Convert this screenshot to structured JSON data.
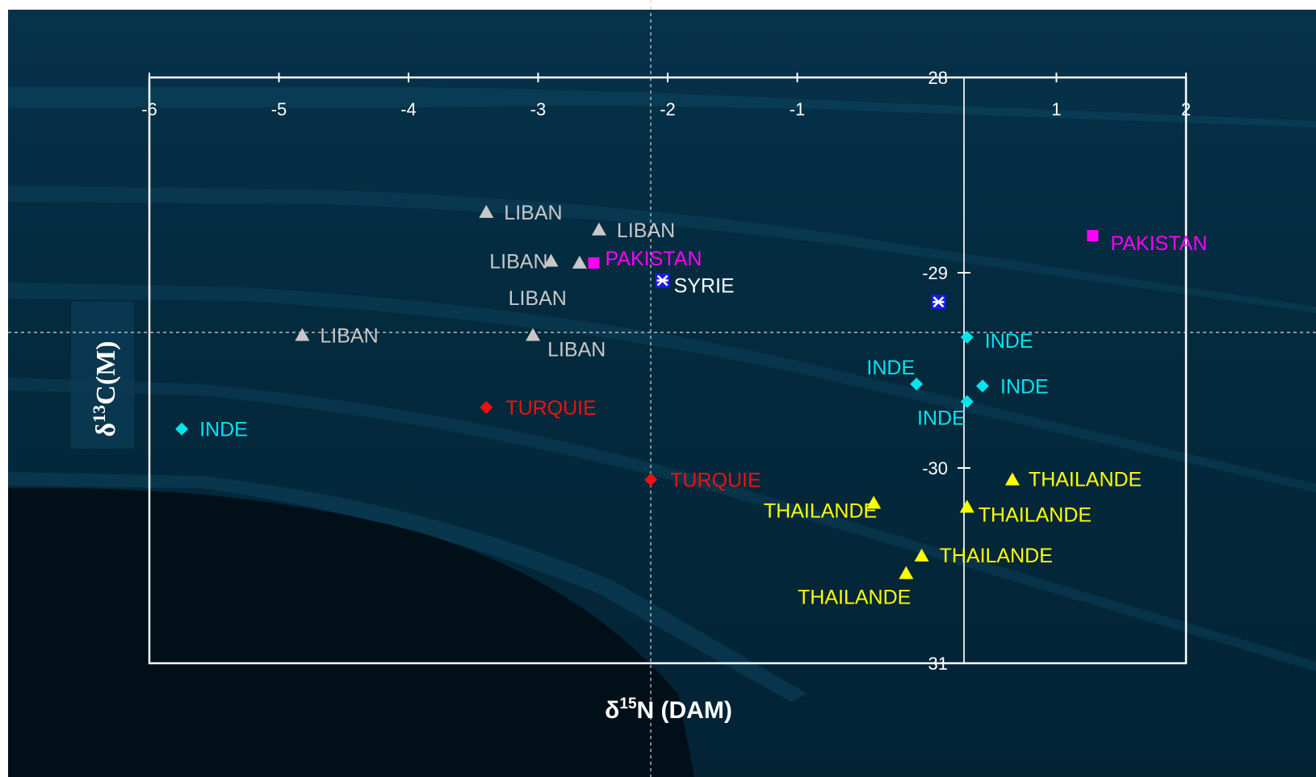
{
  "chart_data": {
    "type": "scatter",
    "title": "",
    "xlabel": {
      "prefix": "δ",
      "sup": "15",
      "main": "N (DAM)"
    },
    "ylabel": {
      "prefix": "δ",
      "sup": "13",
      "main": "C(M)"
    },
    "xlim": [
      -6,
      2
    ],
    "ylim": [
      31,
      28
    ],
    "x_ticks": [
      -6,
      -5,
      -4,
      -3,
      -2,
      -1,
      1,
      2
    ],
    "y_ticks": [
      28,
      -29,
      -30,
      31
    ],
    "grid": false,
    "colors": {
      "LIBAN": "#c8c8c8",
      "PAKISTAN": "#ff00ff",
      "SYRIE": "#ffffff",
      "INDE": "#00e5ee",
      "TURQUIE": "#ee1111",
      "THAILANDE": "#ffff00"
    },
    "points": [
      {
        "x": -3.4,
        "y": -28.69,
        "group": "LIBAN",
        "marker": "triangle",
        "label": "LIBAN"
      },
      {
        "x": -2.53,
        "y": -28.78,
        "group": "LIBAN",
        "marker": "triangle",
        "label": "LIBAN"
      },
      {
        "x": -2.9,
        "y": -28.94,
        "group": "LIBAN",
        "marker": "triangle",
        "label": "LIBAN"
      },
      {
        "x": -2.68,
        "y": -28.95,
        "group": "LIBAN",
        "marker": "triangle",
        "label": "LIBAN"
      },
      {
        "x": -4.82,
        "y": -29.32,
        "group": "LIBAN",
        "marker": "triangle",
        "label": "LIBAN"
      },
      {
        "x": -3.04,
        "y": -29.32,
        "group": "LIBAN",
        "marker": "triangle",
        "label": "LIBAN"
      },
      {
        "x": -2.57,
        "y": -28.95,
        "group": "PAKISTAN",
        "marker": "square",
        "label": "PAKISTAN"
      },
      {
        "x": 1.28,
        "y": -28.81,
        "group": "PAKISTAN",
        "marker": "square",
        "label": "PAKISTAN"
      },
      {
        "x": -2.04,
        "y": -29.04,
        "group": "SYRIE",
        "marker": "star",
        "label": "SYRIE"
      },
      {
        "x": 0.09,
        "y": -29.15,
        "group": "SYRIE",
        "marker": "star",
        "label": ""
      },
      {
        "x": -5.75,
        "y": -29.8,
        "group": "INDE",
        "marker": "diamond",
        "label": "INDE"
      },
      {
        "x": 0.31,
        "y": -29.33,
        "group": "INDE",
        "marker": "diamond",
        "label": "INDE"
      },
      {
        "x": -0.08,
        "y": -29.57,
        "group": "INDE",
        "marker": "diamond",
        "label": "INDE"
      },
      {
        "x": 0.43,
        "y": -29.58,
        "group": "INDE",
        "marker": "diamond",
        "label": "INDE"
      },
      {
        "x": 0.31,
        "y": -29.66,
        "group": "INDE",
        "marker": "diamond",
        "label": "INDE"
      },
      {
        "x": -3.4,
        "y": -29.69,
        "group": "TURQUIE",
        "marker": "diamond",
        "label": "TURQUIE"
      },
      {
        "x": -2.13,
        "y": -30.06,
        "group": "TURQUIE",
        "marker": "diamond",
        "label": "TURQUIE"
      },
      {
        "x": 0.66,
        "y": -30.06,
        "group": "THAILANDE",
        "marker": "triangle",
        "label": "THAILANDE"
      },
      {
        "x": -0.41,
        "y": -30.18,
        "group": "THAILANDE",
        "marker": "triangle",
        "label": "THAILANDE"
      },
      {
        "x": 0.31,
        "y": -30.2,
        "group": "THAILANDE",
        "marker": "triangle",
        "label": "THAILANDE"
      },
      {
        "x": -0.04,
        "y": -30.45,
        "group": "THAILANDE",
        "marker": "triangle",
        "label": "THAILANDE"
      },
      {
        "x": -0.16,
        "y": -30.54,
        "group": "THAILANDE",
        "marker": "triangle",
        "label": "THAILANDE"
      }
    ]
  }
}
